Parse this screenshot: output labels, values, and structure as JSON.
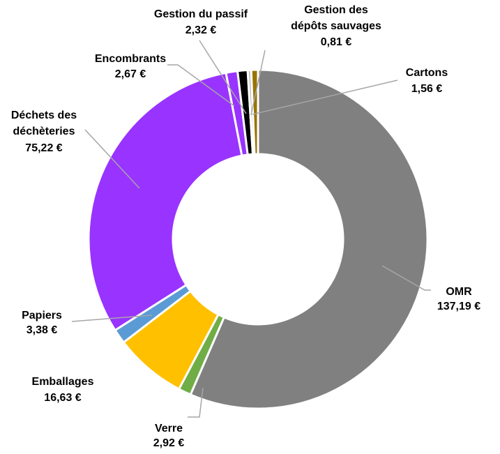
{
  "chart_data": {
    "type": "donut",
    "currency": "€",
    "slices": [
      {
        "name": "OMR",
        "value": 137.19,
        "value_label": "137,19 €",
        "color": "#808080"
      },
      {
        "name": "Verre",
        "value": 2.92,
        "value_label": "2,92 €",
        "color": "#70ad47"
      },
      {
        "name": "Emballages",
        "value": 16.63,
        "value_label": "16,63 €",
        "color": "#ffc000"
      },
      {
        "name": "Papiers",
        "value": 3.38,
        "value_label": "3,38 €",
        "color": "#5b9bd5"
      },
      {
        "name": "Déchets des déchèteries",
        "value": 75.22,
        "value_label": "75,22 €",
        "color": "#9933ff"
      },
      {
        "name": "Encombrants",
        "value": 2.67,
        "value_label": "2,67 €",
        "color": "#9933ff"
      },
      {
        "name": "Gestion du passif",
        "value": 2.32,
        "value_label": "2,32 €",
        "color": "#000000"
      },
      {
        "name": "Gestion des dépôts sauvages",
        "value": 0.81,
        "value_label": "0,81 €",
        "color": "#bfbfbf"
      },
      {
        "name": "Cartons",
        "value": 1.56,
        "value_label": "1,56 €",
        "color": "#997300"
      }
    ],
    "labels": {
      "omr": [
        "OMR",
        "137,19 €"
      ],
      "verre": [
        "Verre",
        "2,92 €"
      ],
      "emballages": [
        "Emballages",
        "16,63 €"
      ],
      "papiers": [
        "Papiers",
        "3,38 €"
      ],
      "dechets": [
        "Déchets des",
        "déchèteries",
        "75,22 €"
      ],
      "encombrants": [
        "Encombrants",
        "2,67 €"
      ],
      "passif": [
        "Gestion du passif",
        "2,32 €"
      ],
      "depots": [
        "Gestion des",
        "dépôts sauvages",
        "0,81 €"
      ],
      "cartons": [
        "Cartons",
        "1,56 €"
      ]
    },
    "legend": "none",
    "title": ""
  }
}
